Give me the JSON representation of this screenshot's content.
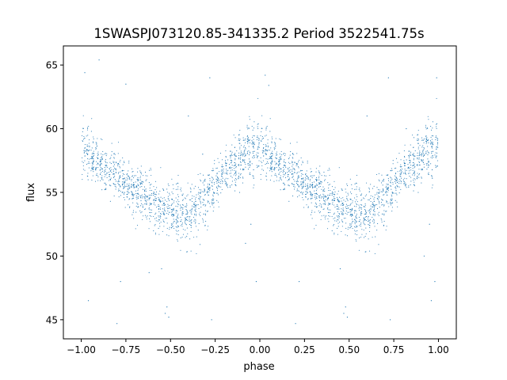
{
  "chart_data": {
    "type": "scatter",
    "title": "1SWASPJ073120.85-341335.2 Period 3522541.75s",
    "xlabel": "phase",
    "ylabel": "flux",
    "xlim": [
      -1.1,
      1.1
    ],
    "ylim": [
      43.5,
      66.5
    ],
    "xticks": [
      -1.0,
      -0.75,
      -0.5,
      -0.25,
      0.0,
      0.25,
      0.5,
      0.75,
      1.0
    ],
    "xtick_labels": [
      "−1.00",
      "−0.75",
      "−0.50",
      "−0.25",
      "0.00",
      "0.25",
      "0.50",
      "0.75",
      "1.00"
    ],
    "yticks": [
      45,
      50,
      55,
      60,
      65
    ],
    "ytick_labels": [
      "45",
      "50",
      "55",
      "60",
      "65"
    ],
    "grid": false,
    "marker_color": "#1f77b4",
    "series": [
      {
        "profile_phase": [
          0.0,
          0.05,
          0.1,
          0.15,
          0.2,
          0.25,
          0.3,
          0.35,
          0.4,
          0.45,
          0.5,
          0.55,
          0.6,
          0.65,
          0.7,
          0.75,
          0.8,
          0.85,
          0.9,
          0.95,
          1.0
        ],
        "profile_flux": [
          58.5,
          58.0,
          57.3,
          56.8,
          56.5,
          55.8,
          55.2,
          54.8,
          54.2,
          53.7,
          53.5,
          53.4,
          53.5,
          53.9,
          54.6,
          55.6,
          56.4,
          57.2,
          57.8,
          58.3,
          58.5
        ],
        "profile_scatter": [
          1.4,
          1.2,
          1.0,
          1.0,
          1.0,
          1.0,
          1.1,
          1.2,
          1.2,
          1.2,
          1.2,
          1.2,
          1.2,
          1.3,
          1.3,
          1.2,
          1.1,
          1.1,
          1.2,
          1.3,
          1.4
        ],
        "outliers": [
          {
            "x": -0.98,
            "y": 64.4
          },
          {
            "x": -0.9,
            "y": 65.4
          },
          {
            "x": -0.96,
            "y": 46.5
          },
          {
            "x": -0.8,
            "y": 44.7
          },
          {
            "x": -0.78,
            "y": 48.0
          },
          {
            "x": -0.53,
            "y": 45.5
          },
          {
            "x": -0.52,
            "y": 46.0
          },
          {
            "x": -0.51,
            "y": 45.2
          },
          {
            "x": -0.55,
            "y": 49.0
          },
          {
            "x": -0.62,
            "y": 48.7
          },
          {
            "x": -0.75,
            "y": 63.5
          },
          {
            "x": -0.4,
            "y": 61.0
          },
          {
            "x": -0.28,
            "y": 64.0
          },
          {
            "x": -0.27,
            "y": 45.0
          },
          {
            "x": -0.05,
            "y": 52.5
          },
          {
            "x": -0.08,
            "y": 51.0
          },
          {
            "x": -0.02,
            "y": 48.0
          },
          {
            "x": 0.03,
            "y": 64.2
          },
          {
            "x": 0.05,
            "y": 63.4
          },
          {
            "x": 0.2,
            "y": 44.7
          },
          {
            "x": 0.22,
            "y": 48.0
          },
          {
            "x": 0.47,
            "y": 45.5
          },
          {
            "x": 0.48,
            "y": 46.0
          },
          {
            "x": 0.49,
            "y": 45.2
          },
          {
            "x": 0.45,
            "y": 49.0
          },
          {
            "x": 0.6,
            "y": 61.0
          },
          {
            "x": 0.72,
            "y": 64.0
          },
          {
            "x": 0.73,
            "y": 45.0
          },
          {
            "x": 0.92,
            "y": 50.0
          },
          {
            "x": 0.95,
            "y": 52.5
          },
          {
            "x": 0.96,
            "y": 46.5
          },
          {
            "x": 0.98,
            "y": 48.0
          },
          {
            "x": 0.99,
            "y": 64.0
          },
          {
            "x": 0.82,
            "y": 60.0
          },
          {
            "x": -0.32,
            "y": 58.0
          }
        ]
      }
    ]
  }
}
